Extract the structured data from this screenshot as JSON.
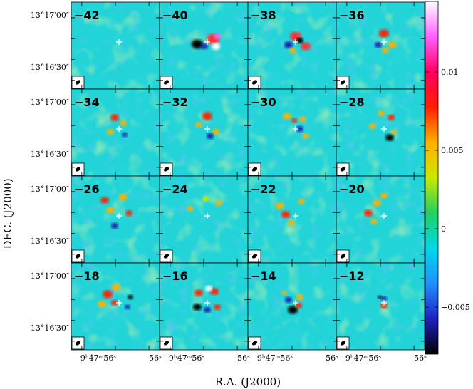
{
  "chart_data": {
    "type": "heatmap",
    "title": "",
    "xlabel": "R.A. (J2000)",
    "ylabel": "DEC. (J2000)",
    "panel_labels": [
      "−42",
      "−40",
      "−38",
      "−36",
      "−34",
      "−32",
      "−30",
      "−28",
      "−26",
      "−24",
      "−22",
      "−20",
      "−18",
      "−16",
      "−14",
      "−12"
    ],
    "panel_velocities": [
      -42,
      -40,
      -38,
      -36,
      -34,
      -32,
      -30,
      -28,
      -26,
      -24,
      -22,
      -20,
      -18,
      -16,
      -14,
      -12
    ],
    "y_tick_labels": [
      "13°17′00″",
      "13°16′30″"
    ],
    "x_tick_labels": [
      "9ʰ47ᵐ56ˢ",
      "56ˢ"
    ],
    "colorbar": {
      "range": [
        -0.008,
        0.0145
      ],
      "ticks": [
        0.01,
        0.005,
        0,
        -0.005
      ],
      "tick_labels": [
        "0.01",
        "0.005",
        "0",
        "−0.005"
      ],
      "colormap": [
        "#000000",
        "#2020c0",
        "#1e90ff",
        "#00d8e8",
        "#20d060",
        "#c8e800",
        "#ffb000",
        "#ff2000",
        "#ff0060",
        "#ff60ff",
        "#ffffff"
      ]
    },
    "background_color": "#22d4d8",
    "grid": false
  }
}
